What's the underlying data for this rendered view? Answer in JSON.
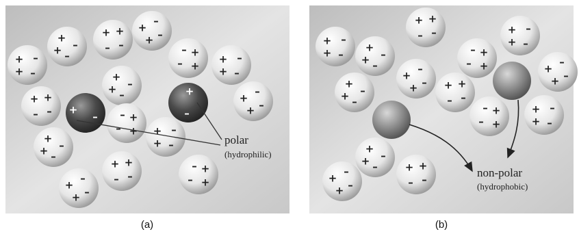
{
  "panels": [
    {
      "label": "(a)",
      "annotation": {
        "title": "polar",
        "subtitle": "(hydrophilic)"
      }
    },
    {
      "label": "(b)",
      "annotation": {
        "title": "non-polar",
        "subtitle": "(hydrophobic)"
      }
    }
  ],
  "signs": {
    "plus": "+",
    "minus": "–"
  }
}
